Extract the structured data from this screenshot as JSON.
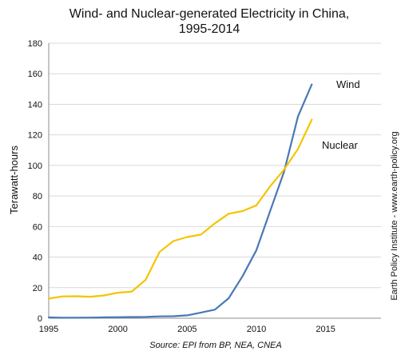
{
  "chart_data": {
    "type": "line",
    "title_line1": "Wind- and Nuclear-generated Electricity in China,",
    "title_line2": "1995-2014",
    "xlabel": "",
    "ylabel": "Terawatt-hours",
    "xlim": [
      1995,
      2019
    ],
    "ylim": [
      0,
      180
    ],
    "xticks": [
      1995,
      2000,
      2005,
      2010,
      2015
    ],
    "yticks": [
      0,
      20,
      40,
      60,
      80,
      100,
      120,
      140,
      160,
      180
    ],
    "grid": "horizontal",
    "x": [
      1995,
      1996,
      1997,
      1998,
      1999,
      2000,
      2001,
      2002,
      2003,
      2004,
      2005,
      2006,
      2007,
      2008,
      2009,
      2010,
      2011,
      2012,
      2013,
      2014
    ],
    "series": [
      {
        "name": "Wind",
        "color": "#4a78b5",
        "values": [
          0.5,
          0.3,
          0.3,
          0.4,
          0.6,
          0.7,
          0.8,
          0.9,
          1.2,
          1.3,
          1.9,
          3.7,
          5.6,
          13.1,
          27.6,
          44.6,
          70.3,
          96,
          132,
          153
        ]
      },
      {
        "name": "Nuclear",
        "color": "#f5c400",
        "values": [
          12.8,
          14.3,
          14.4,
          14.1,
          14.9,
          16.7,
          17.5,
          25.1,
          43.3,
          50.5,
          53.1,
          54.8,
          62.1,
          68.4,
          70.1,
          73.9,
          86.4,
          97.4,
          110.7,
          130
        ]
      }
    ],
    "source": "Source: EPI from BP, NEA, CNEA",
    "side_note": "Earth Policy Institute - www.earth-policy.org"
  }
}
